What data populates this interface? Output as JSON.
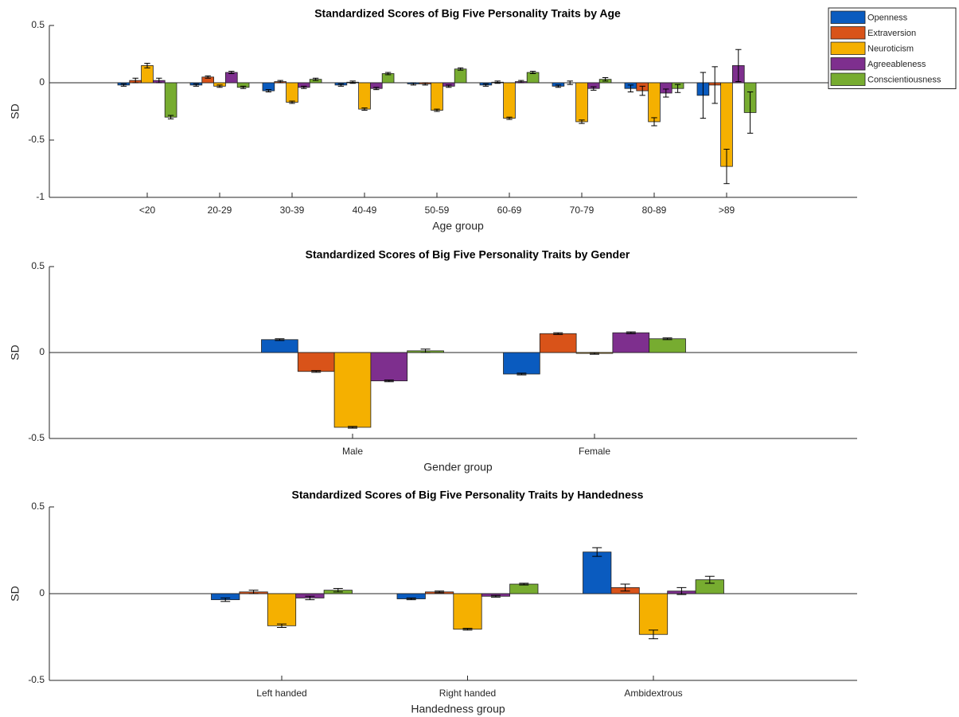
{
  "chart_data": [
    {
      "type": "bar",
      "title": "Standardized Scores of Big Five Personality Traits by Age",
      "x_label": "Age group",
      "y_label": "SD",
      "categories": [
        "<20",
        "20-29",
        "30-39",
        "40-49",
        "50-59",
        "60-69",
        "70-79",
        "80-89",
        ">89"
      ],
      "ylim": [
        -1,
        0.5
      ],
      "yticks": [
        -1,
        -0.5,
        0,
        0.5
      ],
      "legend": "top-right",
      "series": [
        {
          "name": "Openness",
          "color": "#0a5bbf",
          "values": [
            -0.02,
            -0.02,
            -0.07,
            -0.02,
            -0.01,
            -0.02,
            -0.03,
            -0.05,
            -0.11
          ],
          "errors": [
            0.01,
            0.01,
            0.01,
            0.01,
            0.01,
            0.01,
            0.01,
            0.03,
            0.2
          ]
        },
        {
          "name": "Extraversion",
          "color": "#d95319",
          "values": [
            0.02,
            0.05,
            0.01,
            0.005,
            -0.01,
            0.005,
            0.0,
            -0.07,
            -0.02
          ],
          "errors": [
            0.02,
            0.01,
            0.01,
            0.01,
            0.01,
            0.01,
            0.015,
            0.04,
            0.16
          ]
        },
        {
          "name": "Neuroticism",
          "color": "#f5b000",
          "values": [
            0.15,
            -0.03,
            -0.17,
            -0.23,
            -0.24,
            -0.31,
            -0.34,
            -0.34,
            -0.73
          ],
          "errors": [
            0.02,
            0.01,
            0.01,
            0.01,
            0.01,
            0.01,
            0.015,
            0.035,
            0.15
          ]
        },
        {
          "name": "Agreeableness",
          "color": "#7e2f8e",
          "values": [
            0.02,
            0.09,
            -0.04,
            -0.05,
            -0.03,
            0.01,
            -0.05,
            -0.09,
            0.15
          ],
          "errors": [
            0.02,
            0.01,
            0.01,
            0.01,
            0.01,
            0.01,
            0.015,
            0.035,
            0.14
          ]
        },
        {
          "name": "Conscientiousness",
          "color": "#77ac30",
          "values": [
            -0.3,
            -0.04,
            0.03,
            0.08,
            0.12,
            0.09,
            0.03,
            -0.05,
            -0.26
          ],
          "errors": [
            0.015,
            0.01,
            0.01,
            0.01,
            0.01,
            0.01,
            0.015,
            0.035,
            0.18
          ]
        }
      ]
    },
    {
      "type": "bar",
      "title": "Standardized Scores of Big Five Personality Traits by Gender",
      "x_label": "Gender group",
      "y_label": "SD",
      "categories": [
        "Male",
        "Female"
      ],
      "ylim": [
        -0.5,
        0.5
      ],
      "yticks": [
        -0.5,
        0,
        0.5
      ],
      "series": [
        {
          "color": "#0a5bbf",
          "values": [
            0.075,
            -0.125
          ],
          "errors": [
            0.005,
            0.005
          ]
        },
        {
          "color": "#d95319",
          "values": [
            -0.11,
            0.11
          ],
          "errors": [
            0.005,
            0.005
          ]
        },
        {
          "color": "#f5b000",
          "values": [
            -0.435,
            -0.005
          ],
          "errors": [
            0.005,
            0.005
          ]
        },
        {
          "color": "#7e2f8e",
          "values": [
            -0.165,
            0.115
          ],
          "errors": [
            0.005,
            0.005
          ]
        },
        {
          "color": "#77ac30",
          "values": [
            0.01,
            0.08
          ],
          "errors": [
            0.01,
            0.005
          ]
        }
      ]
    },
    {
      "type": "bar",
      "title": "Standardized Scores of Big Five Personality Traits by Handedness",
      "x_label": "Handedness group",
      "y_label": "SD",
      "categories": [
        "Left handed",
        "Right handed",
        "Ambidextrous"
      ],
      "ylim": [
        -0.5,
        0.5
      ],
      "yticks": [
        -0.5,
        0,
        0.5
      ],
      "series": [
        {
          "color": "#0a5bbf",
          "values": [
            -0.035,
            -0.03,
            0.24
          ],
          "errors": [
            0.01,
            0.005,
            0.025
          ]
        },
        {
          "color": "#d95319",
          "values": [
            0.01,
            0.01,
            0.035
          ],
          "errors": [
            0.01,
            0.005,
            0.02
          ]
        },
        {
          "color": "#f5b000",
          "values": [
            -0.185,
            -0.205,
            -0.235
          ],
          "errors": [
            0.01,
            0.005,
            0.025
          ]
        },
        {
          "color": "#7e2f8e",
          "values": [
            -0.025,
            -0.015,
            0.015
          ],
          "errors": [
            0.01,
            0.005,
            0.02
          ]
        },
        {
          "color": "#77ac30",
          "values": [
            0.02,
            0.055,
            0.08
          ],
          "errors": [
            0.01,
            0.005,
            0.02
          ]
        }
      ]
    }
  ]
}
